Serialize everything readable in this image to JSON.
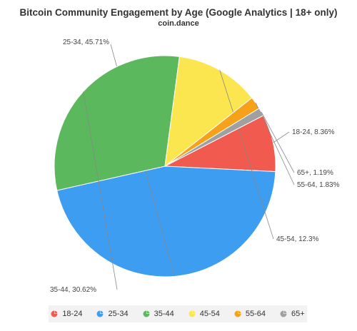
{
  "chart_data": {
    "type": "pie",
    "title": "Bitcoin Community Engagement by Age (Google Analytics | 18+ only)",
    "subtitle": "coin.dance",
    "slices": [
      {
        "name": "18-24",
        "value": 8.36,
        "label": "18-24, 8.36%",
        "color": "#f15a4e"
      },
      {
        "name": "25-34",
        "value": 45.71,
        "label": "25-34, 45.71%",
        "color": "#3d9df0"
      },
      {
        "name": "35-44",
        "value": 30.62,
        "label": "35-44, 30.62%",
        "color": "#5cb85c"
      },
      {
        "name": "45-54",
        "value": 12.3,
        "label": "45-54, 12.3%",
        "color": "#fbe64f"
      },
      {
        "name": "55-64",
        "value": 1.83,
        "label": "55-64, 1.83%",
        "color": "#f7a11a"
      },
      {
        "name": "65+",
        "value": 1.19,
        "label": "65+, 1.19%",
        "color": "#a0a0a0"
      }
    ],
    "legend": {
      "position": "bottom",
      "items": [
        "18-24",
        "25-34",
        "35-44",
        "45-54",
        "55-64",
        "65+"
      ]
    }
  }
}
